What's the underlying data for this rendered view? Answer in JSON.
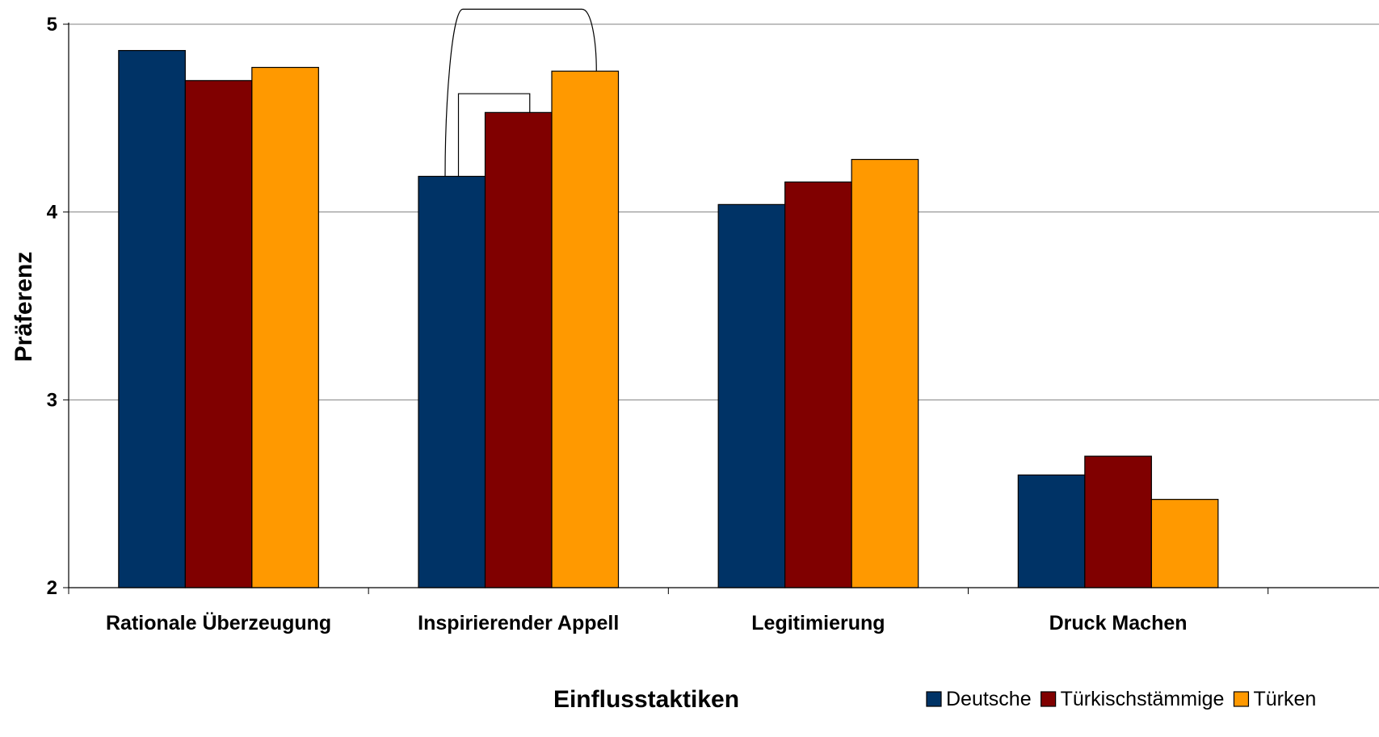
{
  "chart_data": {
    "type": "bar",
    "title": "",
    "xlabel": "Einflusstaktiken",
    "ylabel": "Präferenz",
    "ylim": [
      2,
      5
    ],
    "yticks": [
      "2",
      "3",
      "4",
      "5"
    ],
    "grid": true,
    "legend_position": "bottom-right",
    "categories": [
      "Rationale Überzeugung",
      "Inspirierender Appell",
      "Legitimierung",
      "Druck Machen"
    ],
    "series": [
      {
        "name": "Deutsche",
        "color": "#003366",
        "values": [
          4.86,
          4.19,
          4.04,
          2.6
        ]
      },
      {
        "name": "Türkischstämmige",
        "color": "#800000",
        "values": [
          4.7,
          4.53,
          4.16,
          2.7
        ]
      },
      {
        "name": "Türken",
        "color": "#FF9900",
        "values": [
          4.77,
          4.75,
          4.28,
          2.47
        ]
      }
    ],
    "significance_brackets": [
      {
        "category": "Inspirierender Appell",
        "from_series": "Deutsche",
        "to_series": "Türkischstämmige",
        "level": 4.63
      },
      {
        "category": "Inspirierender Appell",
        "from_series": "Deutsche",
        "to_series": "Türken",
        "level": 5.08
      }
    ]
  }
}
